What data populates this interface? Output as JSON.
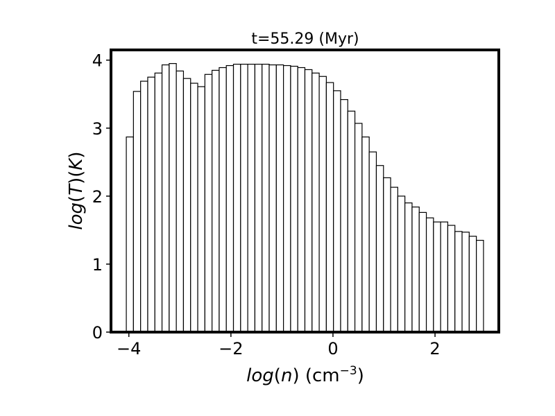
{
  "chart_data": {
    "type": "bar",
    "title": "t=55.29 (Myr)",
    "xlabel": {
      "var": "log",
      "arg": "n",
      "unit": "cm",
      "exp": "−3"
    },
    "ylabel": {
      "var": "log",
      "arg": "T",
      "unit": "K"
    },
    "xlim": [
      -4.35,
      3.25
    ],
    "ylim": [
      0,
      4.15
    ],
    "xticks": [
      -4,
      -2,
      0,
      2
    ],
    "xtick_labels": [
      "−4",
      "−2",
      "0",
      "2"
    ],
    "yticks": [
      0,
      1,
      2,
      3,
      4
    ],
    "ytick_labels": [
      "0",
      "1",
      "2",
      "3",
      "4"
    ],
    "bin_start": -4.05,
    "bin_width": 0.14,
    "values": [
      2.87,
      3.54,
      3.69,
      3.75,
      3.81,
      3.93,
      3.95,
      3.84,
      3.73,
      3.66,
      3.61,
      3.79,
      3.85,
      3.89,
      3.92,
      3.94,
      3.94,
      3.94,
      3.94,
      3.94,
      3.93,
      3.93,
      3.92,
      3.91,
      3.89,
      3.86,
      3.81,
      3.76,
      3.67,
      3.55,
      3.42,
      3.25,
      3.07,
      2.87,
      2.65,
      2.45,
      2.27,
      2.13,
      2.0,
      1.9,
      1.84,
      1.76,
      1.68,
      1.62,
      1.62,
      1.57,
      1.48,
      1.47,
      1.41,
      1.35
    ],
    "bar_fill": "#ffffff",
    "bar_edge": "#000000",
    "grid": false,
    "legend": "none"
  }
}
